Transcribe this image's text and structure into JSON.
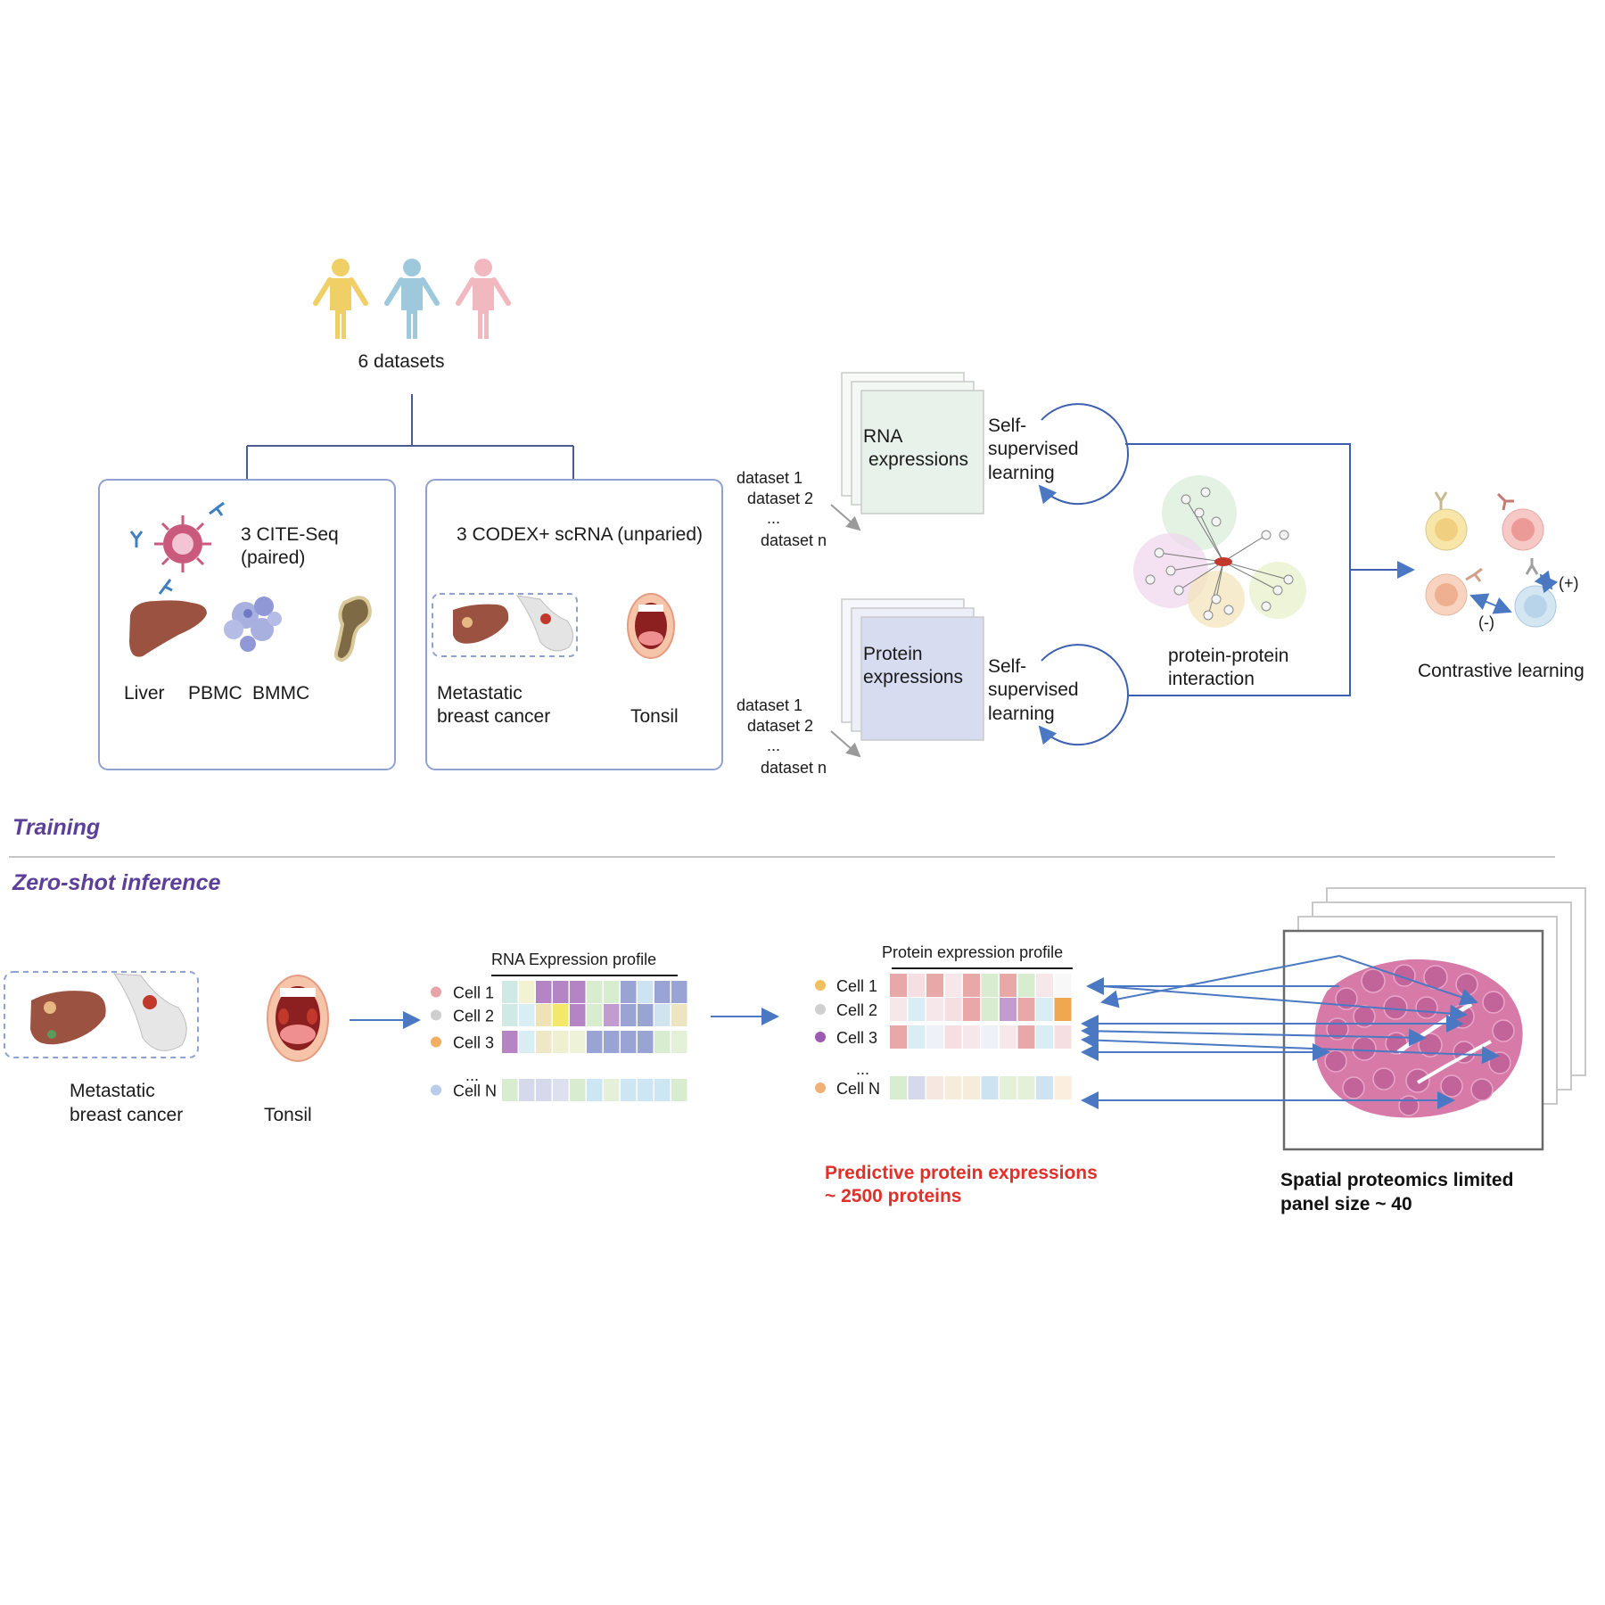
{
  "top": {
    "datasets_label": "6 datasets",
    "person_colors": [
      "#f0cf66",
      "#9ec8dc",
      "#f2b8c0"
    ],
    "cite_seq": {
      "line1": "3 CITE-Seq",
      "line2": "(paired)",
      "liver": "Liver",
      "pbmc": "PBMC",
      "bmmc": "BMMC"
    },
    "codex": {
      "title": "3 CODEX+ scRNA (unparied)",
      "cancer_line1": "Metastatic",
      "cancer_line2": "breast cancer",
      "tonsil": "Tonsil"
    },
    "rna_stack": {
      "line1": "RNA",
      "line2": "expressions"
    },
    "protein_stack": {
      "line1": "Protein",
      "line2": "expressions"
    },
    "dataset_list": {
      "d1": "dataset 1",
      "d2": "dataset 2",
      "dots": "...",
      "dn": "dataset n"
    },
    "ssl": {
      "line1": "Self-",
      "line2": "supervised",
      "line3": "learning"
    },
    "ppi": {
      "line1": "protein-protein",
      "line2": "interaction"
    },
    "contrastive": {
      "label": "Contrastive learning",
      "positive": "(+)",
      "negative": "(-)"
    }
  },
  "sections": {
    "training": "Training",
    "zero_shot": "Zero-shot inference"
  },
  "bottom": {
    "cancer_line1": "Metastatic",
    "cancer_line2": "breast cancer",
    "tonsil": "Tonsil",
    "rna_profile": {
      "title": "RNA Expression profile",
      "rows": [
        {
          "label": "Cell 1",
          "dot": "#e8a3a6",
          "cells": [
            "#cfe9e4",
            "#f3f3d4",
            "#b484c4",
            "#b484c4",
            "#b484c4",
            "#d8ecd0",
            "#d8ecd0",
            "#9aa4d4",
            "#cde3f2",
            "#9aa4d4",
            "#9aa4d4"
          ]
        },
        {
          "label": "Cell 2",
          "dot": "#cfcfcf",
          "cells": [
            "#cfe9e4",
            "#d9edf5",
            "#efe3b6",
            "#f4e86a",
            "#b484c4",
            "#d8ecd0",
            "#c39ccf",
            "#9aa4d4",
            "#9aa4d4",
            "#cfe4ee",
            "#ede4c2"
          ]
        },
        {
          "label": "Cell 3",
          "dot": "#f0b064",
          "cells": [
            "#b484c4",
            "#d9edf5",
            "#efe8c6",
            "#efefd2",
            "#eef2d8",
            "#9aa4d4",
            "#9aa4d4",
            "#9aa4d4",
            "#9aa4d4",
            "#d8ecd0",
            "#e4f0d8"
          ]
        },
        {
          "label": "Cell N",
          "dot": "#b8cdea",
          "cells": [
            "#d8ecd0",
            "#d6d9ec",
            "#d6d9ec",
            "#dde0ee",
            "#d8ecd0",
            "#cde6f4",
            "#e4f0d8",
            "#cde6f4",
            "#cde6f4",
            "#cde6f4",
            "#d8ecd0"
          ]
        }
      ],
      "dots": "..."
    },
    "protein_profile": {
      "title": "Protein expression profile",
      "rows": [
        {
          "label": "Cell 1",
          "dot": "#f0c060",
          "cells": [
            "#e8a8a8",
            "#f6dfe2",
            "#e8a8a8",
            "#f6e8ea",
            "#e8a8a8",
            "#d8ecd0",
            "#e8a8a8",
            "#d8ecd0",
            "#f6e8ea",
            "#f8f8f8"
          ]
        },
        {
          "label": "Cell 2",
          "dot": "#d0d0d0",
          "cells": [
            "#f6e8ea",
            "#d9edf5",
            "#f6e8ea",
            "#f6dfe2",
            "#e8a8a8",
            "#d8ecd0",
            "#c39ccf",
            "#e8a8a8",
            "#d9edf5",
            "#f0a850"
          ]
        },
        {
          "label": "Cell 3",
          "dot": "#9b5bb0",
          "cells": [
            "#e8a8a8",
            "#d9edf5",
            "#eef2f8",
            "#f6dfe2",
            "#f6e8ea",
            "#eef2f8",
            "#f6e8ea",
            "#e8a8a8",
            "#d9edf5",
            "#f6dfe2"
          ]
        },
        {
          "label": "Cell N",
          "dot": "#f0b078",
          "cells": [
            "#d8ecd0",
            "#d6d9ec",
            "#f6e8e0",
            "#f6ecdc",
            "#f6ecdc",
            "#cde3f2",
            "#e4f0d8",
            "#e4f0d8",
            "#cde3f2",
            "#fbeede"
          ]
        }
      ],
      "dots": "..."
    },
    "predictive": {
      "line1": "Predictive protein expressions",
      "line2": "~ 2500 proteins"
    },
    "spatial": {
      "line1": "Spatial proteomics limited",
      "line2": "panel size ~ 40"
    }
  },
  "colors": {
    "accent_purple": "#5b3f98",
    "arrow_blue": "#4a78c2",
    "line_blue": "#3d5fb0",
    "red": "#e0302a"
  },
  "icons": [
    "person-icon",
    "virus-antibody-icon",
    "liver-icon",
    "pbmc-cell-icon",
    "bone-icon",
    "breast-cancer-icon",
    "tonsil-mouth-icon",
    "ppi-network-icon",
    "immune-cell-icon",
    "tissue-section-icon"
  ]
}
